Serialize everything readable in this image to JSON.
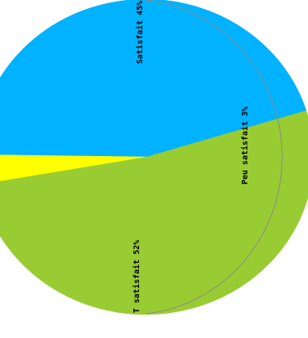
{
  "chart_data": {
    "type": "pie",
    "slices": [
      {
        "name": "T satisfait",
        "value": 52,
        "label": "T satisfait 52%",
        "color": "#99cc33"
      },
      {
        "name": "Satisfait",
        "value": 45,
        "label": "Satisfait 45%",
        "color": "#00b2ff"
      },
      {
        "name": "Peu satisfait",
        "value": 3,
        "label": "Peu satisfait 3%",
        "color": "#ffff00"
      }
    ]
  }
}
